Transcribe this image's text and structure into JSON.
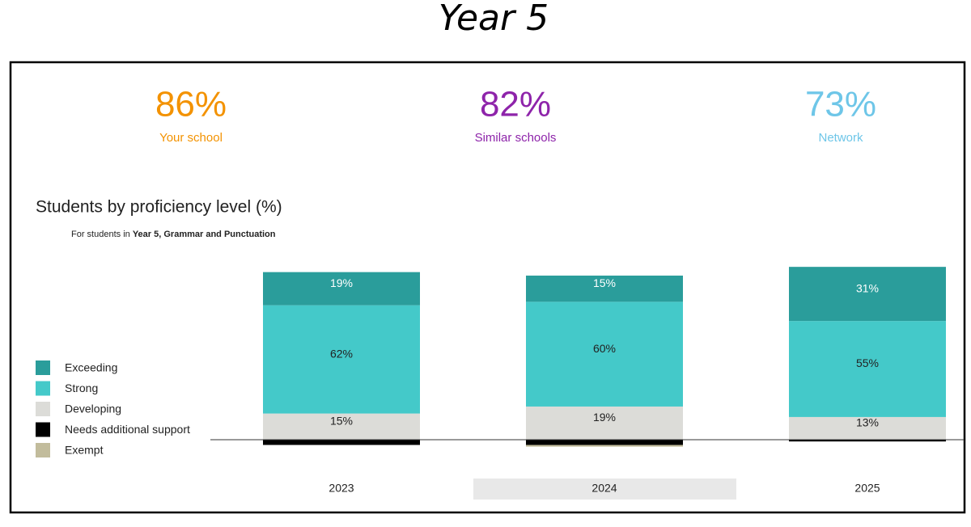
{
  "page_title": "Year 5",
  "kpis": [
    {
      "value": "86%",
      "label": "Your school",
      "color": "#f39200"
    },
    {
      "value": "82%",
      "label": "Similar schools",
      "color": "#8e24aa"
    },
    {
      "value": "73%",
      "label": "Network",
      "color": "#6ec6e8"
    }
  ],
  "chart_data": {
    "type": "bar",
    "stacked": true,
    "title": "Students by proficiency level (%)",
    "subtitle": [
      "For students in ",
      "Year 5, Grammar and Punctuation"
    ],
    "categories": [
      "2023",
      "2024",
      "2025"
    ],
    "highlighted_category": 1,
    "series": [
      {
        "name": "Exceeding",
        "color": "#2a9d9b",
        "label_color": "#ffffff",
        "values": [
          19,
          15,
          31
        ],
        "value_labels": [
          "19%",
          "15%",
          "31%"
        ]
      },
      {
        "name": "Strong",
        "color": "#44c9c9",
        "label_color": "#222222",
        "values": [
          62,
          60,
          55
        ],
        "value_labels": [
          "62%",
          "60%",
          "55%"
        ]
      },
      {
        "name": "Developing",
        "color": "#dcdcd8",
        "label_color": "#222222",
        "values": [
          15,
          19,
          13
        ],
        "value_labels": [
          "15%",
          "19%",
          "13%"
        ]
      },
      {
        "name": "Needs additional support",
        "color": "#000000",
        "below": true,
        "values": [
          3,
          3,
          1
        ]
      },
      {
        "name": "Exempt",
        "color": "#c2bc9c",
        "below": true,
        "values": [
          0,
          1,
          0
        ]
      }
    ]
  }
}
